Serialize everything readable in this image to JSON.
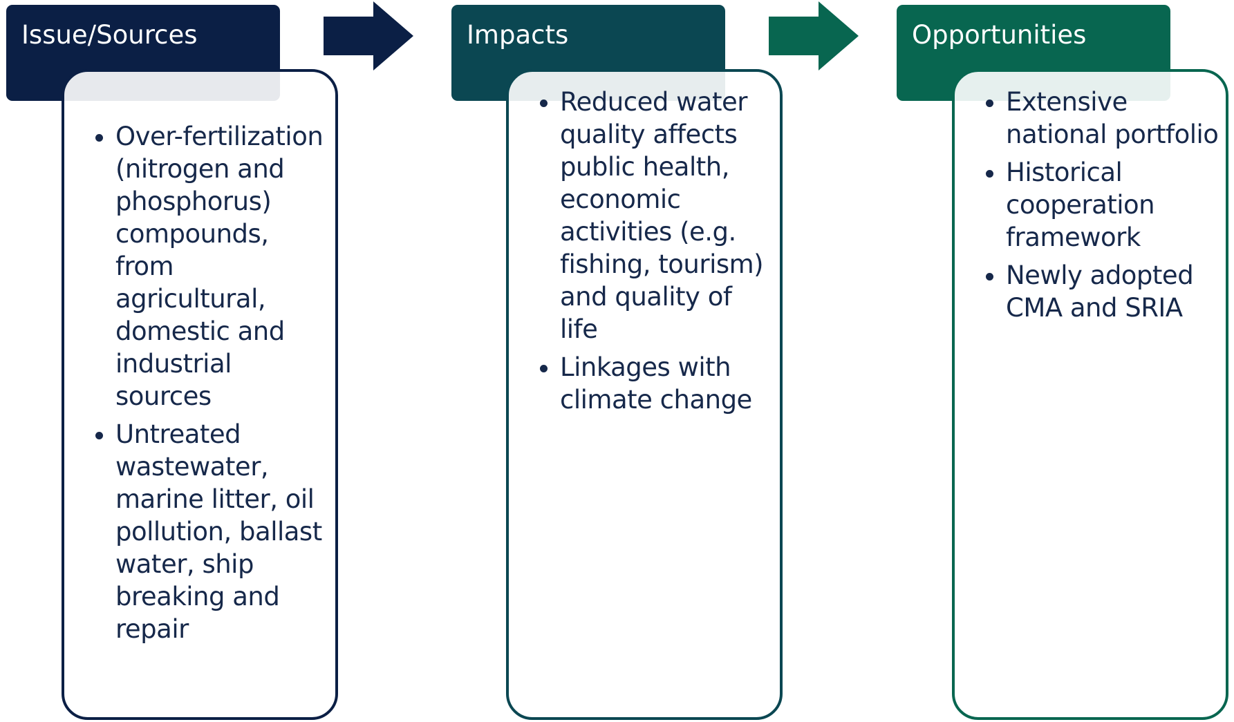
{
  "columns": [
    {
      "title": "Issue/Sources",
      "items": [
        "Over-fertilization (nitrogen and phosphorus) compounds, from agricultural, domestic and industrial sources",
        "Untreated wastewater, marine litter, oil pollution, ballast water, ship breaking and repair"
      ]
    },
    {
      "title": "Impacts",
      "items": [
        "Reduced water quality affects public health, economic activities (e.g. fishing, tourism) and quality of life",
        "Linkages with climate change"
      ]
    },
    {
      "title": "Opportunities",
      "items": [
        "Extensive national portfolio",
        "Historical cooperation framework",
        "Newly adopted CMA and SRIA"
      ]
    }
  ]
}
